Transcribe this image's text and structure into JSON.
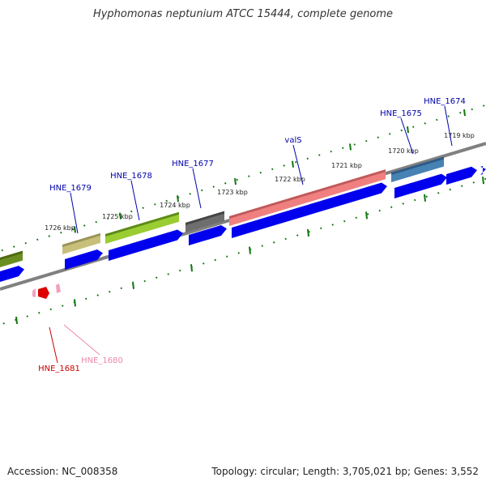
{
  "title": "Hyphomonas neptunium ATCC 15444, complete genome",
  "footer": {
    "accession": "Accession: NC_008358",
    "summary": "Topology: circular; Length: 3,705,021 bp; Genes: 3,552"
  },
  "colors": {
    "gene_label": "#0000aa",
    "cds_arrow": "#0000ee",
    "backbone": "#808080",
    "tick": "#117711",
    "hne1681_label": "#cc0000",
    "hne1680_label": "#ee88aa"
  },
  "ticks": [
    "1719 kbp",
    "1720 kbp",
    "1721 kbp",
    "1722 kbp",
    "1723 kbp",
    "1724 kbp",
    "1725 kbp",
    "1726 kbp"
  ],
  "genes": [
    {
      "label": "HNE_1674"
    },
    {
      "label": "HNE_1675"
    },
    {
      "label": "valS"
    },
    {
      "label": "HNE_1677"
    },
    {
      "label": "HNE_1678"
    },
    {
      "label": "HNE_1679"
    },
    {
      "label": "HNE_1681"
    },
    {
      "label": "HNE_1680"
    }
  ]
}
